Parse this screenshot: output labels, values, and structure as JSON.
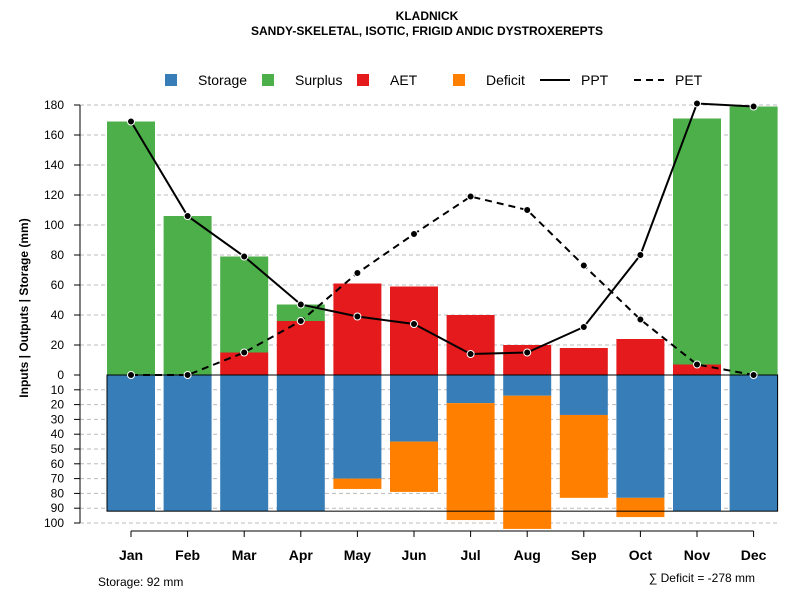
{
  "chart_data": {
    "type": "bar",
    "title": "KLADNICK",
    "subtitle": "SANDY-SKELETAL, ISOTIC, FRIGID ANDIC DYSTROXEREPTS",
    "ylabel": "Inputs | Outputs | Storage    (mm)",
    "categories": [
      "Jan",
      "Feb",
      "Mar",
      "Apr",
      "May",
      "Jun",
      "Jul",
      "Aug",
      "Sep",
      "Oct",
      "Nov",
      "Dec"
    ],
    "ylim_top": [
      0,
      180
    ],
    "ylim_bottom": [
      0,
      100
    ],
    "yticks_top": [
      "0",
      "20",
      "40",
      "60",
      "80",
      "100",
      "120",
      "140",
      "160",
      "180"
    ],
    "yticks_bottom": [
      "10",
      "20",
      "30",
      "40",
      "50",
      "60",
      "70",
      "80",
      "90",
      "100"
    ],
    "grid": true,
    "legend_position": "top",
    "series": [
      {
        "name": "Storage",
        "kind": "bar-bottom",
        "color": "#377EB8",
        "values": [
          92,
          92,
          92,
          92,
          70,
          45,
          19,
          14,
          27,
          83,
          92,
          92
        ]
      },
      {
        "name": "Surplus",
        "kind": "bar-top",
        "color": "#4DAF4A",
        "values": [
          169,
          106,
          64,
          11,
          0,
          0,
          0,
          0,
          0,
          0,
          164,
          179
        ]
      },
      {
        "name": "AET",
        "kind": "bar-top",
        "color": "#E41A1C",
        "values": [
          0,
          0,
          15,
          36,
          61,
          59,
          40,
          20,
          18,
          24,
          7,
          0
        ]
      },
      {
        "name": "Deficit",
        "kind": "bar-bottom",
        "color": "#FF7F00",
        "values": [
          0,
          0,
          0,
          0,
          7,
          34,
          79,
          90,
          56,
          13,
          0,
          0
        ]
      },
      {
        "name": "PPT",
        "kind": "line",
        "style": "solid",
        "color": "#000000",
        "values": [
          169,
          106,
          79,
          47,
          39,
          34,
          14,
          15,
          32,
          80,
          181,
          179
        ]
      },
      {
        "name": "PET",
        "kind": "line",
        "style": "dashed",
        "color": "#000000",
        "values": [
          0,
          0,
          15,
          36,
          68,
          94,
          119,
          110,
          73,
          37,
          7,
          0
        ]
      }
    ],
    "storage_capacity": 92,
    "footer_left": "Storage: 92 mm",
    "footer_right": "∑ Deficit = -278 mm"
  }
}
